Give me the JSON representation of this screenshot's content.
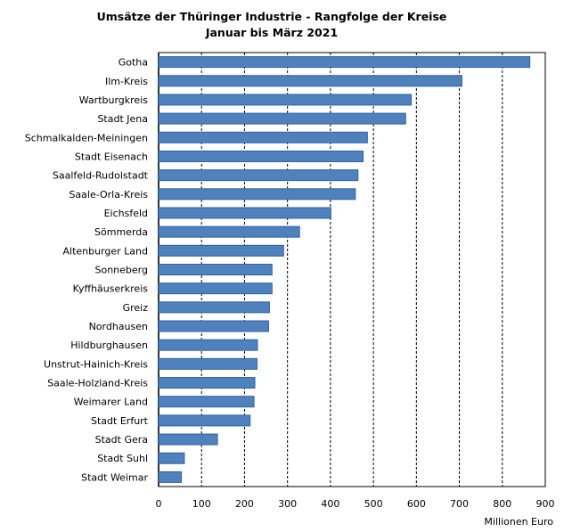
{
  "chart_data": {
    "type": "bar",
    "orientation": "horizontal",
    "title": "Umsätze der Thüringer Industrie - Rangfolge der Kreise",
    "subtitle": "Januar bis März 2021",
    "xlabel": "Millionen Euro",
    "ylabel": "",
    "xlim": [
      0,
      900
    ],
    "ticks": [
      "0",
      "100",
      "200",
      "300",
      "400",
      "500",
      "600",
      "700",
      "800",
      "900"
    ],
    "grid": "vertical dashed",
    "bar_color": "#4f81bd",
    "categories": [
      "Gotha",
      "Ilm-Kreis",
      "Wartburgkreis",
      "Stadt Jena",
      "Schmalkalden-Meiningen",
      "Stadt Eisenach",
      "Saalfeld-Rudolstadt",
      "Saale-Orla-Kreis",
      "Eichsfeld",
      "Sömmerda",
      "Altenburger Land",
      "Sonneberg",
      "Kyffhäuserkreis",
      "Greiz",
      "Nordhausen",
      "Hildburghausen",
      "Unstrut-Hainich-Kreis",
      "Saale-Holzland-Kreis",
      "Weimarer Land",
      "Stadt Erfurt",
      "Stadt Gera",
      "Stadt Suhl",
      "Stadt Weimar"
    ],
    "values": [
      864,
      706,
      588,
      575,
      486,
      476,
      464,
      458,
      401,
      328,
      291,
      264,
      264,
      258,
      256,
      230,
      229,
      224,
      222,
      213,
      137,
      60,
      53
    ]
  }
}
